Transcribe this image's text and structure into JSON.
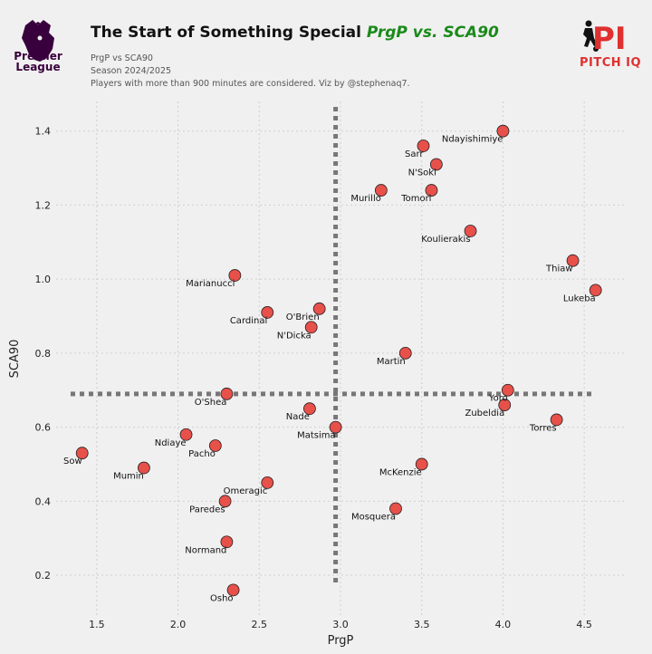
{
  "header": {
    "title_main": "The Start of Something Special ",
    "title_accent": "PrgP vs. SCA90",
    "subtitle_1": "PrgP vs SCA90",
    "subtitle_2": "Season 2024/2025",
    "subtitle_3": "Players with more than 900 minutes are considered. Viz by @stephenaq7.",
    "league_logo_text": "Premier League",
    "brand_text": "PITCH IQ",
    "brand_mark": "PI"
  },
  "colors": {
    "point_fill": "#e8504a",
    "accent_green": "#1a8a1a",
    "brand_red": "#e03030",
    "league_purple": "#38003c",
    "median_line": "#777777"
  },
  "chart_data": {
    "type": "scatter",
    "xlabel": "PrgP",
    "ylabel": "SCA90",
    "xlim": [
      1.25,
      4.75
    ],
    "ylim": [
      0.09,
      1.48
    ],
    "xticks": [
      "1.5",
      "2.0",
      "2.5",
      "3.0",
      "3.5",
      "4.0",
      "4.5"
    ],
    "yticks": [
      "0.2",
      "0.4",
      "0.6",
      "0.8",
      "1.0",
      "1.2",
      "1.4"
    ],
    "median_x": 2.97,
    "median_y": 0.69,
    "grid": true,
    "points": [
      {
        "name": "Ndayishimiye",
        "x": 4.0,
        "y": 1.4
      },
      {
        "name": "Sarr",
        "x": 3.51,
        "y": 1.36
      },
      {
        "name": "N'Soki",
        "x": 3.59,
        "y": 1.31
      },
      {
        "name": "Murillo",
        "x": 3.25,
        "y": 1.24
      },
      {
        "name": "Tomori",
        "x": 3.56,
        "y": 1.24
      },
      {
        "name": "Koulierakis",
        "x": 3.8,
        "y": 1.13
      },
      {
        "name": "Thiaw",
        "x": 4.43,
        "y": 1.05
      },
      {
        "name": "Lukeba",
        "x": 4.57,
        "y": 0.97
      },
      {
        "name": "Marianucci",
        "x": 2.35,
        "y": 1.01
      },
      {
        "name": "Cardinal",
        "x": 2.55,
        "y": 0.91
      },
      {
        "name": "O'Brien",
        "x": 2.87,
        "y": 0.92
      },
      {
        "name": "N'Dicka",
        "x": 2.82,
        "y": 0.87
      },
      {
        "name": "Martin",
        "x": 3.4,
        "y": 0.8
      },
      {
        "name": "O'Shea",
        "x": 2.3,
        "y": 0.69
      },
      {
        "name": "Yoro",
        "x": 4.03,
        "y": 0.7
      },
      {
        "name": "Zubeldia",
        "x": 4.01,
        "y": 0.66
      },
      {
        "name": "Nade",
        "x": 2.81,
        "y": 0.65
      },
      {
        "name": "Matsima",
        "x": 2.97,
        "y": 0.6
      },
      {
        "name": "Torres",
        "x": 4.33,
        "y": 0.62
      },
      {
        "name": "Ndiaye",
        "x": 2.05,
        "y": 0.58
      },
      {
        "name": "Pacho",
        "x": 2.23,
        "y": 0.55
      },
      {
        "name": "Sow",
        "x": 1.41,
        "y": 0.53
      },
      {
        "name": "Mumin",
        "x": 1.79,
        "y": 0.49
      },
      {
        "name": "McKenzie",
        "x": 3.5,
        "y": 0.5
      },
      {
        "name": "Omeragic",
        "x": 2.55,
        "y": 0.45
      },
      {
        "name": "Paredes",
        "x": 2.29,
        "y": 0.4
      },
      {
        "name": "Mosquera",
        "x": 3.34,
        "y": 0.38
      },
      {
        "name": "Normand",
        "x": 2.3,
        "y": 0.29
      },
      {
        "name": "Osho",
        "x": 2.34,
        "y": 0.16
      }
    ]
  }
}
